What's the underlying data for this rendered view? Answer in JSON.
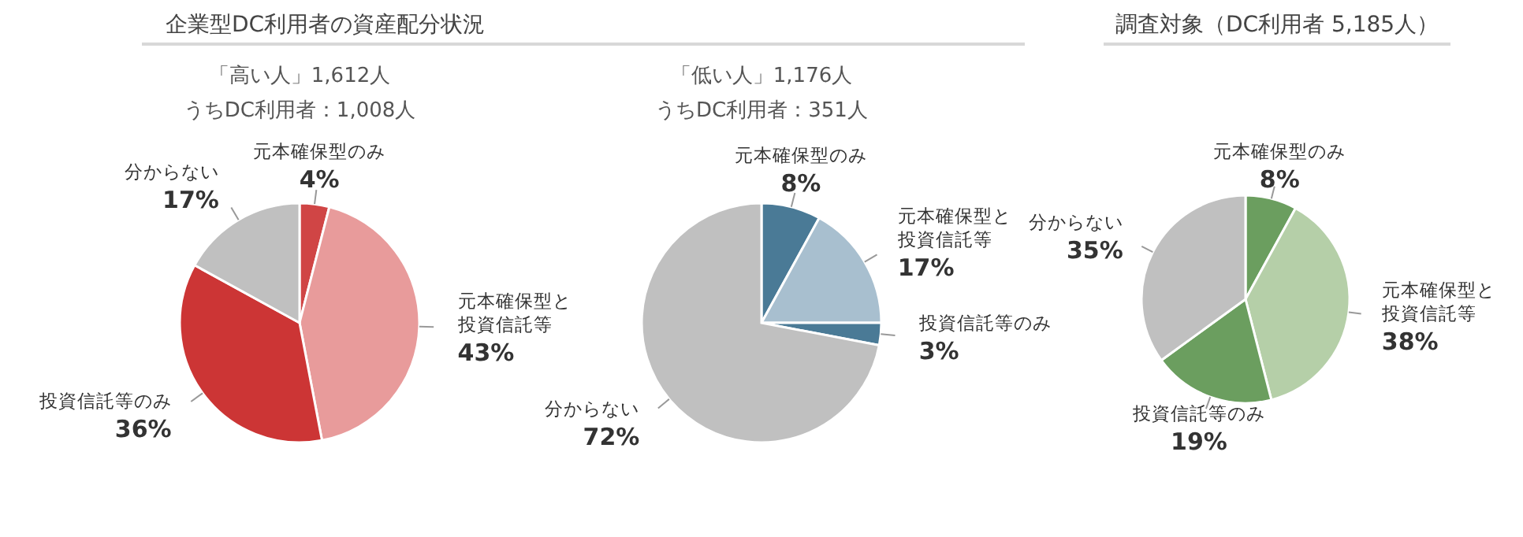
{
  "chart_data": [
    {
      "type": "pie",
      "title": "企業型DC利用者の資産配分状況",
      "subtitle": "「高い人」1,612人",
      "annotations": [
        "うちDC利用者：1,008人"
      ],
      "categories": [
        "元本確保型のみ",
        "元本確保型と投資信託等",
        "投資信託等のみ",
        "分からない"
      ],
      "values": [
        4,
        43,
        36,
        17
      ],
      "value_labels": [
        "4%",
        "43%",
        "36%",
        "17%"
      ],
      "colors": [
        "#d04545",
        "#e89b9b",
        "#cc3535",
        "#c0c0c0"
      ]
    },
    {
      "type": "pie",
      "subtitle": "「低い人」1,176人",
      "annotations": [
        "うちDC利用者：351人"
      ],
      "categories": [
        "元本確保型のみ",
        "元本確保型と投資信託等",
        "投資信託等のみ",
        "分からない"
      ],
      "values": [
        8,
        17,
        3,
        72
      ],
      "value_labels": [
        "8%",
        "17%",
        "3%",
        "72%"
      ],
      "colors": [
        "#4a7a96",
        "#a8bfcf",
        "#4a7a96",
        "#c0c0c0"
      ]
    },
    {
      "type": "pie",
      "title": "調査対象（DC利用者 5,185人）",
      "categories": [
        "元本確保型のみ",
        "元本確保型と投資信託等",
        "投資信託等のみ",
        "分からない"
      ],
      "values": [
        8,
        38,
        19,
        35
      ],
      "value_labels": [
        "8%",
        "38%",
        "19%",
        "35%"
      ],
      "colors": [
        "#6b9e5f",
        "#b5cfa8",
        "#6b9e5f",
        "#c0c0c0"
      ]
    }
  ]
}
